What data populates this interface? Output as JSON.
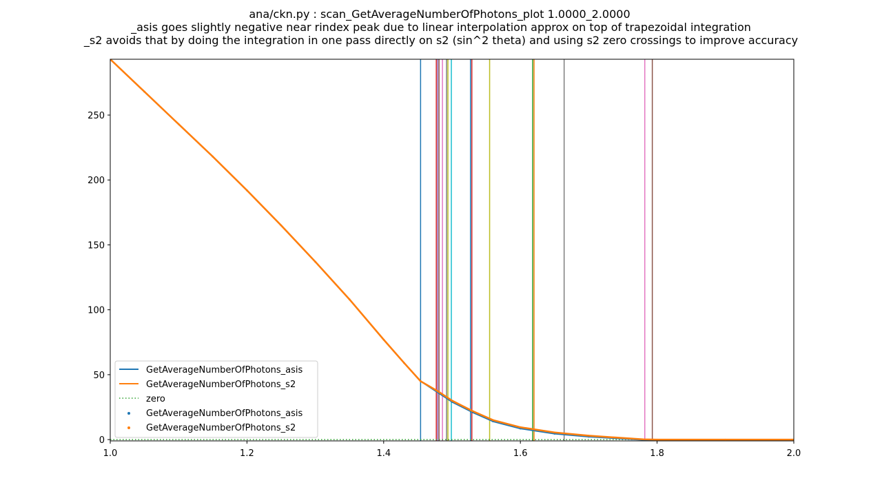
{
  "chart_data": {
    "type": "line",
    "title": [
      "ana/ckn.py : scan_GetAverageNumberOfPhotons_plot 1.0000_2.0000",
      "_asis goes slightly negative near rindex peak due to linear interpolation approx on top of trapezoidal integration",
      "_s2 avoids that by doing the integration in one pass directly on s2 (sin^2 theta) and using s2 zero crossings to improve accuracy"
    ],
    "xlim": [
      1.0,
      2.0
    ],
    "ylim": [
      -1,
      293
    ],
    "xticks": [
      1.0,
      1.2,
      1.4,
      1.6,
      1.8,
      2.0
    ],
    "xtick_labels": [
      "1.0",
      "1.2",
      "1.4",
      "1.6",
      "1.8",
      "2.0"
    ],
    "yticks": [
      0,
      50,
      100,
      150,
      200,
      250
    ],
    "ytick_labels": [
      "0",
      "50",
      "100",
      "150",
      "200",
      "250"
    ],
    "grid": false,
    "legend_position": "lower-left",
    "series": [
      {
        "name": "GetAverageNumberOfPhotons_asis",
        "style": "line",
        "color": "#1f77b4",
        "x": [
          1.0,
          1.05,
          1.1,
          1.15,
          1.2,
          1.25,
          1.3,
          1.35,
          1.4,
          1.43,
          1.454,
          1.48,
          1.5,
          1.53,
          1.56,
          1.6,
          1.65,
          1.7,
          1.75,
          1.78,
          1.8,
          1.9,
          2.0
        ],
        "values": [
          293,
          268,
          243,
          218,
          192,
          165,
          137,
          108,
          77,
          59,
          45,
          36,
          29,
          21,
          14,
          8.5,
          4.5,
          2.2,
          0.6,
          -0.3,
          -0.5,
          -0.4,
          -0.3
        ]
      },
      {
        "name": "GetAverageNumberOfPhotons_s2",
        "style": "line",
        "color": "#ff7f0e",
        "x": [
          1.0,
          1.05,
          1.1,
          1.15,
          1.2,
          1.25,
          1.3,
          1.35,
          1.4,
          1.43,
          1.454,
          1.48,
          1.5,
          1.53,
          1.56,
          1.6,
          1.65,
          1.7,
          1.75,
          1.78,
          1.8,
          1.9,
          2.0
        ],
        "values": [
          293,
          268,
          243,
          218,
          192,
          165,
          137,
          108,
          77,
          59,
          45,
          37,
          30,
          22,
          15,
          9.5,
          5.5,
          3.0,
          1.2,
          0.2,
          0,
          0,
          0
        ]
      },
      {
        "name": "zero",
        "style": "dotted",
        "color": "#2ca02c",
        "x": [
          1.0,
          2.0
        ],
        "values": [
          0,
          0
        ]
      },
      {
        "name": "GetAverageNumberOfPhotons_asis",
        "style": "scatter",
        "color": "#1f77b4"
      },
      {
        "name": "GetAverageNumberOfPhotons_s2",
        "style": "scatter",
        "color": "#ff7f0e"
      }
    ],
    "vlines": [
      {
        "x": 1.454,
        "color": "#1f77b4"
      },
      {
        "x": 1.477,
        "color": "#d62728"
      },
      {
        "x": 1.479,
        "color": "#9467bd"
      },
      {
        "x": 1.481,
        "color": "#8c564b"
      },
      {
        "x": 1.486,
        "color": "#e377c2"
      },
      {
        "x": 1.492,
        "color": "#7f7f7f"
      },
      {
        "x": 1.494,
        "color": "#bcbd22"
      },
      {
        "x": 1.499,
        "color": "#17becf"
      },
      {
        "x": 1.527,
        "color": "#1f77b4"
      },
      {
        "x": 1.529,
        "color": "#d62728"
      },
      {
        "x": 1.555,
        "color": "#bcbd22"
      },
      {
        "x": 1.618,
        "color": "#2ca02c"
      },
      {
        "x": 1.62,
        "color": "#ff7f0e"
      },
      {
        "x": 1.664,
        "color": "#7f7f7f"
      },
      {
        "x": 1.782,
        "color": "#e377c2"
      },
      {
        "x": 1.793,
        "color": "#8c564b"
      }
    ]
  }
}
